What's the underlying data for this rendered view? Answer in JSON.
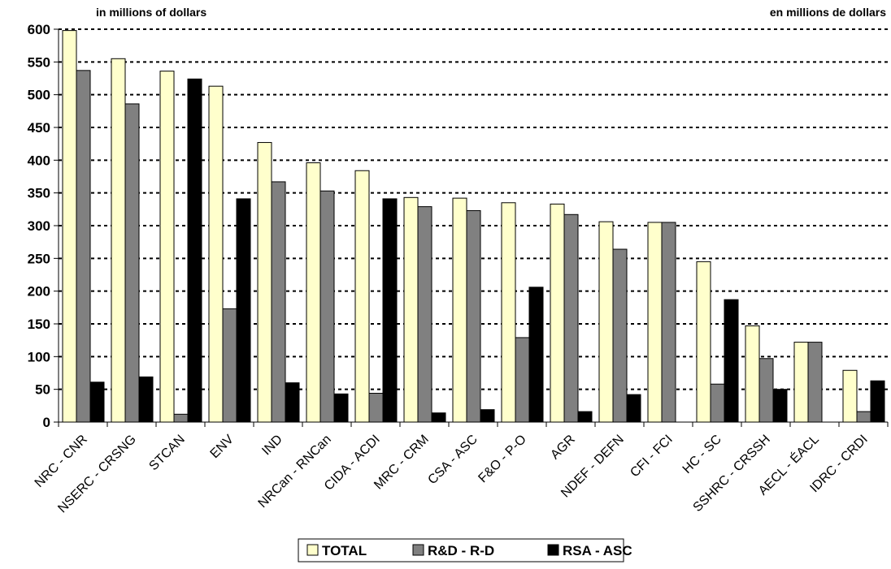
{
  "chart_data": {
    "type": "bar",
    "unit_label_left": "in millions of dollars",
    "unit_label_right": "en millions de dollars",
    "ylim": [
      0,
      600
    ],
    "yticks": [
      0,
      50,
      100,
      150,
      200,
      250,
      300,
      350,
      400,
      450,
      500,
      550,
      600
    ],
    "grid": "horizontal dashed",
    "legend_position": "bottom",
    "categories": [
      "NRC - CNR",
      "NSERC - CRSNG",
      "STCAN",
      "ENV",
      "IND",
      "NRCan - RNCan",
      "CIDA - ACDI",
      "MRC - CRM",
      "CSA - ASC",
      "F&O - P-O",
      "AGR",
      "NDEF - DEFN",
      "CFI - FCI",
      "HC - SC",
      "SSHRC - CRSSH",
      "AECL - ÉACL",
      "IDRC - CRDI"
    ],
    "series": [
      {
        "name": "TOTAL",
        "color": "#ffffcc",
        "values": [
          598,
          555,
          536,
          513,
          427,
          396,
          384,
          343,
          342,
          335,
          333,
          306,
          305,
          245,
          147,
          122,
          79
        ]
      },
      {
        "name": "R&D - R-D",
        "color": "#808080",
        "values": [
          537,
          486,
          12,
          173,
          367,
          353,
          44,
          329,
          323,
          129,
          317,
          264,
          305,
          58,
          97,
          122,
          16
        ]
      },
      {
        "name": "RSA - ASC",
        "color": "#000000",
        "values": [
          61,
          69,
          524,
          341,
          60,
          43,
          341,
          14,
          19,
          206,
          16,
          42,
          0,
          187,
          50,
          0,
          63
        ]
      }
    ]
  }
}
